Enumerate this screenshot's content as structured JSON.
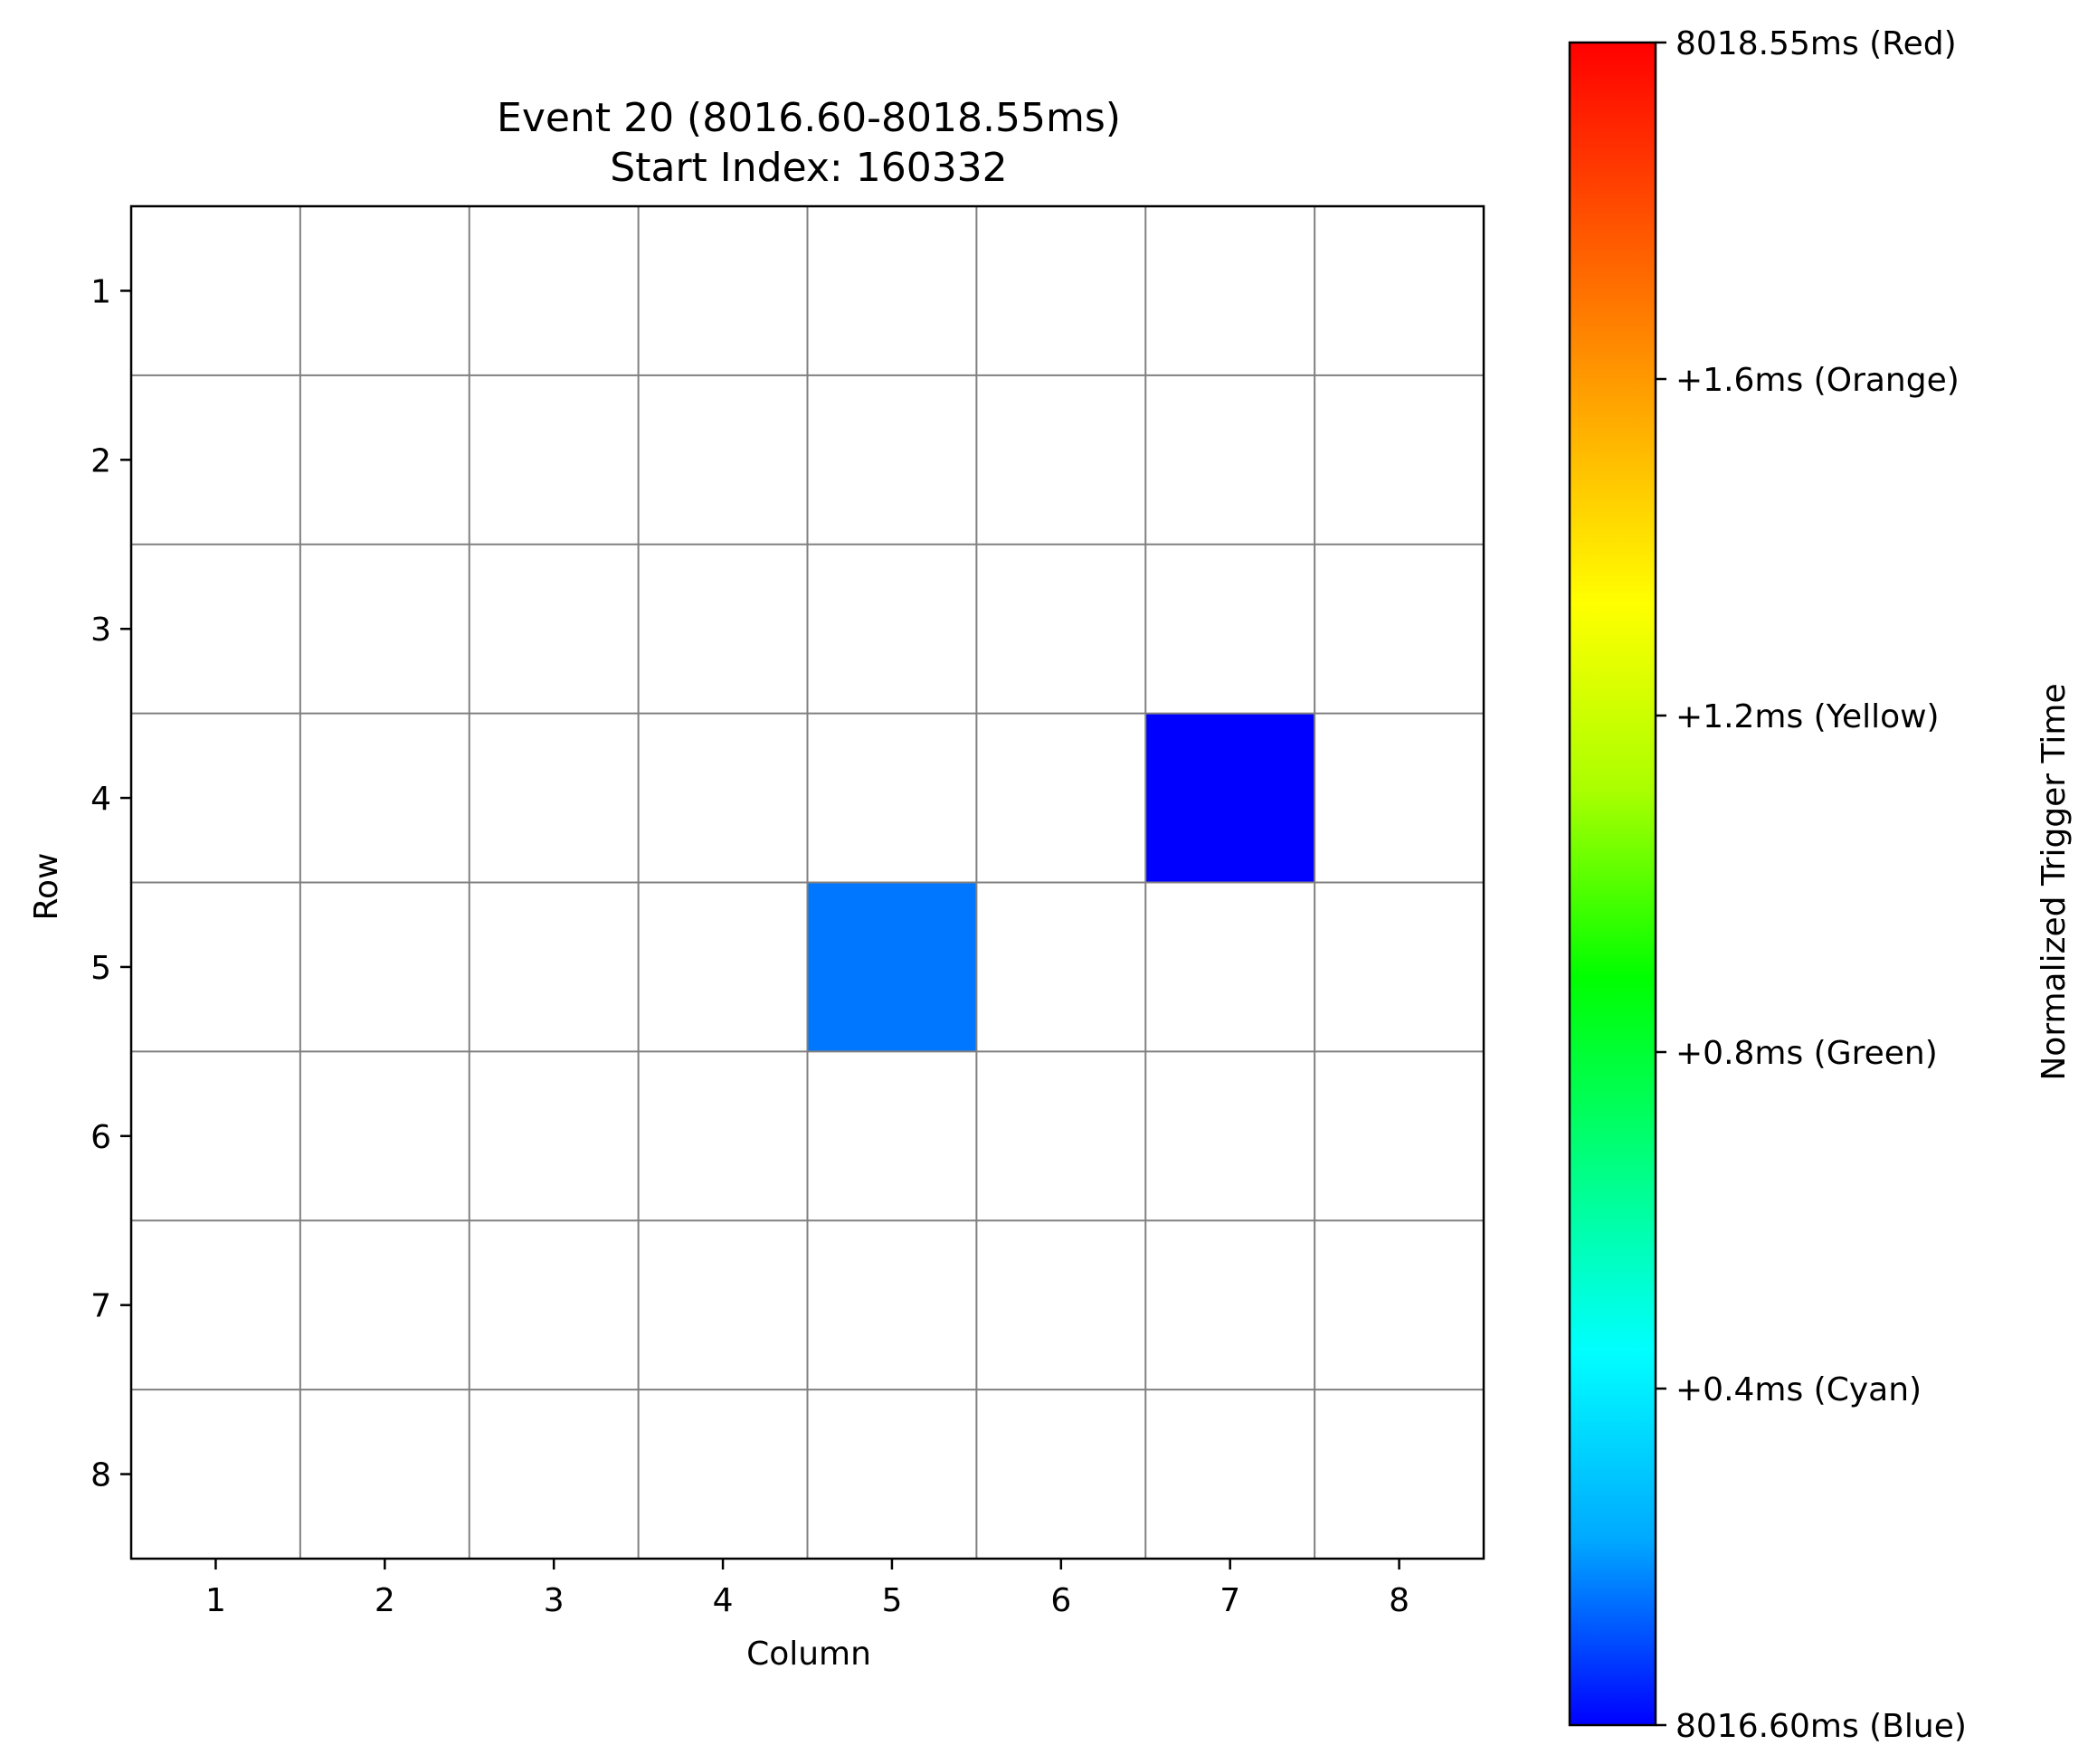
{
  "chart_data": {
    "type": "heatmap",
    "title": "Event 20 (8016.60-8018.55ms)",
    "subtitle": "Start Index: 160332",
    "xlabel": "Column",
    "ylabel": "Row",
    "x_ticks": [
      "1",
      "2",
      "3",
      "4",
      "5",
      "6",
      "7",
      "8"
    ],
    "y_ticks": [
      "1",
      "2",
      "3",
      "4",
      "5",
      "6",
      "7",
      "8"
    ],
    "grid": true,
    "grid_color": "#808080",
    "background_color": "#ffffff",
    "cells": [
      {
        "row": 4,
        "column": 7,
        "value": 0.0,
        "color": "#0000ff"
      },
      {
        "row": 5,
        "column": 5,
        "value": 0.25,
        "color": "#0077ff"
      }
    ],
    "colorbar": {
      "label": "Normalized Trigger Time",
      "min": 0,
      "max": 1,
      "colormap": [
        "#0000ff",
        "#00aaff",
        "#00ffff",
        "#00ff80",
        "#00ff00",
        "#aaff00",
        "#ffff00",
        "#ffaa00",
        "#ff5500",
        "#ff0000"
      ],
      "ticks": [
        {
          "value": 0.0,
          "label": "8016.60ms (Blue)"
        },
        {
          "value": 0.2,
          "label": "+0.4ms (Cyan)"
        },
        {
          "value": 0.4,
          "label": "+0.8ms (Green)"
        },
        {
          "value": 0.6,
          "label": "+1.2ms (Yellow)"
        },
        {
          "value": 0.8,
          "label": "+1.6ms (Orange)"
        },
        {
          "value": 1.0,
          "label": "8018.55ms (Red)"
        }
      ]
    }
  }
}
